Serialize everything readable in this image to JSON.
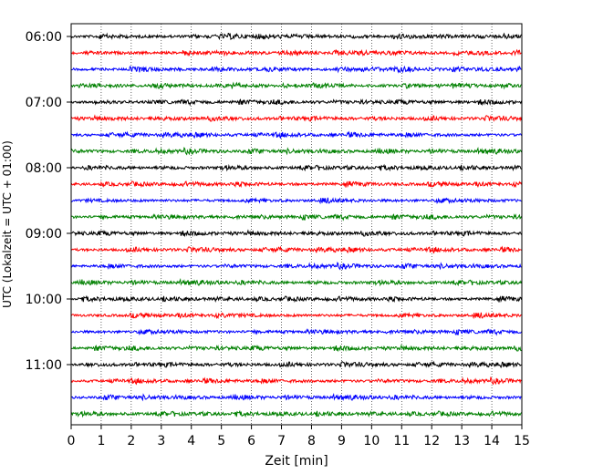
{
  "chart_data": {
    "type": "line",
    "title": "",
    "xlabel": "Zeit  [min]",
    "ylabel": "UTC (Lokalzeit = UTC + 01:00)",
    "xlim": [
      0,
      15
    ],
    "x_ticks": [
      "0",
      "1",
      "2",
      "3",
      "4",
      "5",
      "6",
      "7",
      "8",
      "9",
      "10",
      "11",
      "12",
      "13",
      "14",
      "15"
    ],
    "y_ticks": [
      "06:00",
      "07:00",
      "08:00",
      "09:00",
      "10:00",
      "11:00"
    ],
    "grid": "vertical dotted",
    "trace_minutes": 15,
    "colors": [
      "#000000",
      "#ff0000",
      "#0000ff",
      "#008000"
    ],
    "traces": [
      {
        "start": "06:00",
        "color": "#000000"
      },
      {
        "start": "06:15",
        "color": "#ff0000"
      },
      {
        "start": "06:30",
        "color": "#0000ff"
      },
      {
        "start": "06:45",
        "color": "#008000"
      },
      {
        "start": "07:00",
        "color": "#000000"
      },
      {
        "start": "07:15",
        "color": "#ff0000"
      },
      {
        "start": "07:30",
        "color": "#0000ff"
      },
      {
        "start": "07:45",
        "color": "#008000"
      },
      {
        "start": "08:00",
        "color": "#000000"
      },
      {
        "start": "08:15",
        "color": "#ff0000"
      },
      {
        "start": "08:30",
        "color": "#0000ff"
      },
      {
        "start": "08:45",
        "color": "#008000"
      },
      {
        "start": "09:00",
        "color": "#000000"
      },
      {
        "start": "09:15",
        "color": "#ff0000"
      },
      {
        "start": "09:30",
        "color": "#0000ff"
      },
      {
        "start": "09:45",
        "color": "#008000"
      },
      {
        "start": "10:00",
        "color": "#000000"
      },
      {
        "start": "10:15",
        "color": "#ff0000"
      },
      {
        "start": "10:30",
        "color": "#0000ff"
      },
      {
        "start": "10:45",
        "color": "#008000"
      },
      {
        "start": "11:00",
        "color": "#000000"
      },
      {
        "start": "11:15",
        "color": "#ff0000"
      },
      {
        "start": "11:30",
        "color": "#0000ff"
      },
      {
        "start": "11:45",
        "color": "#008000"
      }
    ]
  }
}
